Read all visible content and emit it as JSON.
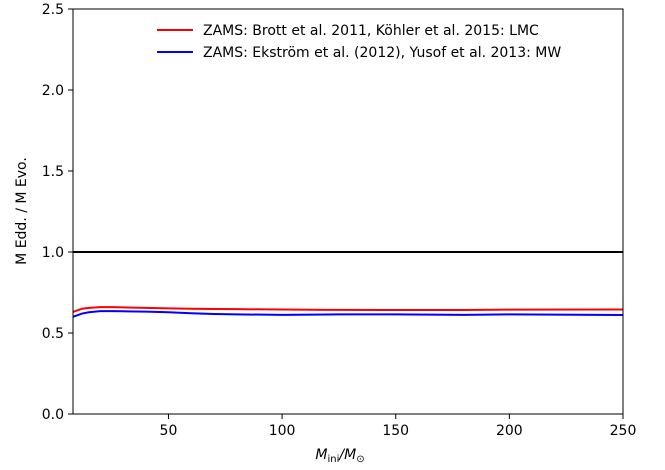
{
  "chart_data": {
    "type": "line",
    "xlabel": [
      "M",
      "ini",
      "/M",
      "⊙"
    ],
    "ylabel": "M Edd. / M Evo.",
    "x": [
      8,
      10,
      12,
      15,
      20,
      25,
      30,
      40,
      50,
      60,
      70,
      80,
      100,
      120,
      125,
      150,
      180,
      200,
      250
    ],
    "series": [
      {
        "name": "ZAMS: Brott et al. 2011, Köhler et al. 2015: LMC",
        "color": "#ff0000",
        "values": [
          0.63,
          0.64,
          0.65,
          0.655,
          0.66,
          0.66,
          0.658,
          0.655,
          0.652,
          0.65,
          0.648,
          0.647,
          0.645,
          0.643,
          0.643,
          0.642,
          0.642,
          0.644,
          0.645
        ]
      },
      {
        "name": "ZAMS: Ekström et al. (2012), Yusof et al. 2013: MW",
        "color": "#0000ff",
        "values": [
          0.6,
          0.61,
          0.62,
          0.628,
          0.635,
          0.635,
          0.634,
          0.632,
          0.628,
          0.622,
          0.617,
          0.615,
          0.612,
          0.614,
          0.615,
          0.615,
          0.612,
          0.615,
          0.611
        ]
      }
    ],
    "hline": 1.0,
    "xlim": [
      8,
      250
    ],
    "xticks": [
      50,
      100,
      150,
      200,
      250
    ],
    "ylim": [
      0,
      2.5
    ],
    "yticks": [
      {
        "value": 0,
        "label": "0.0"
      },
      0.5,
      {
        "value": 1,
        "label": "1.0"
      },
      1.5,
      {
        "value": 2,
        "label": "2.0"
      },
      2.5
    ],
    "legend": "upper right"
  }
}
